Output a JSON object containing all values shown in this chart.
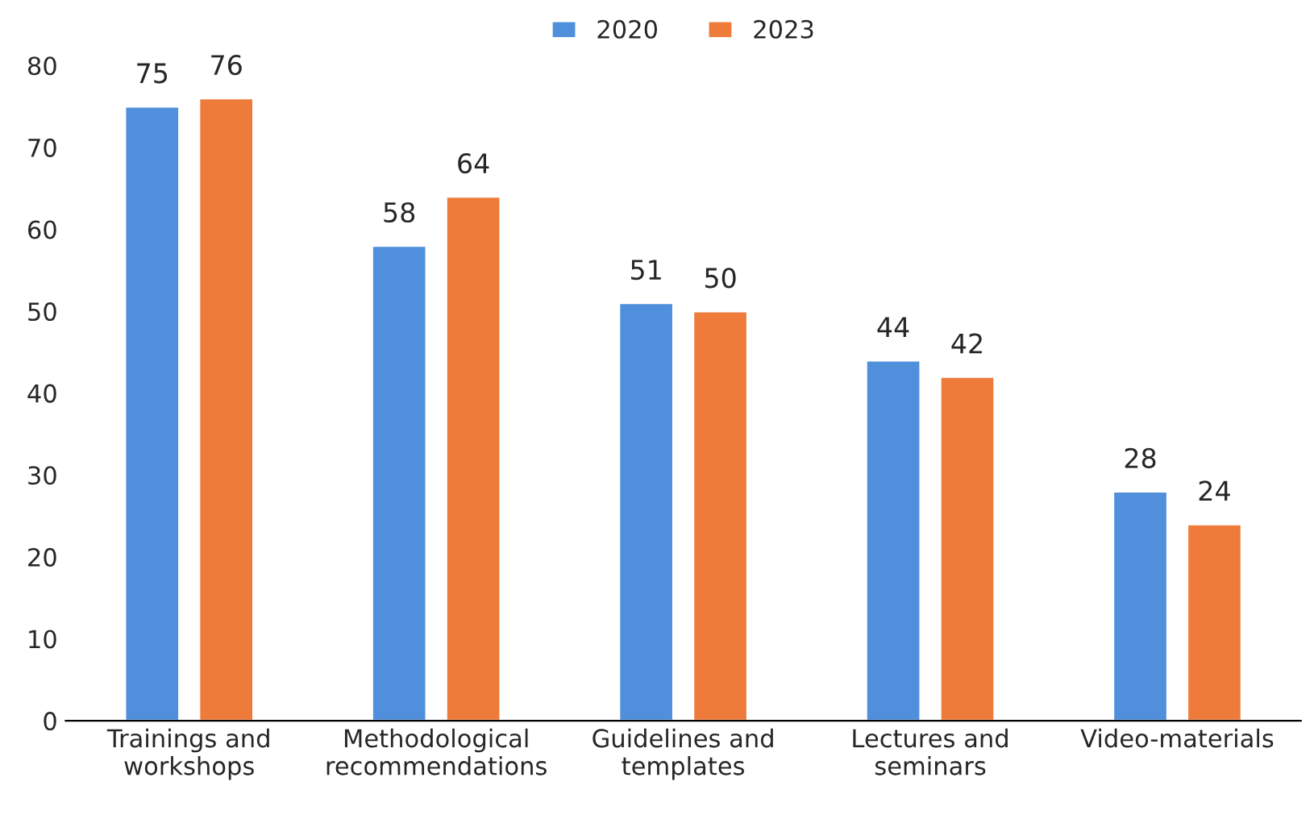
{
  "chart_data": {
    "type": "bar",
    "categories": [
      "Trainings and\nworkshops",
      "Methodological\nrecommendations",
      "Guidelines and\ntemplates",
      "Lectures and\nseminars",
      "Video-materials"
    ],
    "series": [
      {
        "name": "2020",
        "color": "#4f8fdc",
        "values": [
          75,
          58,
          51,
          44,
          28
        ]
      },
      {
        "name": "2023",
        "color": "#ef7b3a",
        "values": [
          76,
          64,
          50,
          42,
          24
        ]
      }
    ],
    "ylim": [
      0,
      80
    ],
    "yticks": [
      0,
      10,
      20,
      30,
      40,
      50,
      60,
      70,
      80
    ],
    "data_labels": true,
    "legend": "top",
    "grid": false
  }
}
